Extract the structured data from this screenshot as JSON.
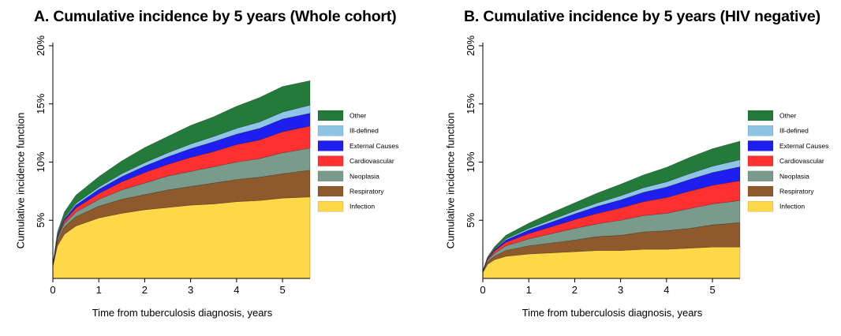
{
  "chart_data": [
    {
      "type": "area",
      "stacked": true,
      "title": "A. Cumulative incidence by 5 years (Whole cohort)",
      "xlabel": "Time from tuberculosis diagnosis, years",
      "ylabel": "Cumulative incidence function",
      "xlim": [
        0,
        5.6
      ],
      "ylim": [
        0,
        20
      ],
      "xticks": [
        "0",
        "1",
        "2",
        "3",
        "4",
        "5"
      ],
      "yticks": [
        "5%",
        "10%",
        "15%",
        "20%"
      ],
      "legend_position": "right",
      "x": [
        0,
        0.1,
        0.25,
        0.5,
        1,
        1.5,
        2,
        2.5,
        3,
        3.5,
        4,
        4.5,
        5,
        5.6
      ],
      "series": [
        {
          "name": "Infection",
          "color": "#FFD84A",
          "values": [
            1.0,
            2.8,
            3.8,
            4.5,
            5.2,
            5.6,
            5.9,
            6.1,
            6.3,
            6.4,
            6.6,
            6.7,
            6.9,
            7.0
          ]
        },
        {
          "name": "Respiratory",
          "color": "#8E5A2B",
          "values": [
            0.1,
            0.4,
            0.6,
            0.8,
            1.0,
            1.2,
            1.3,
            1.5,
            1.6,
            1.8,
            1.9,
            2.0,
            2.1,
            2.3
          ]
        },
        {
          "name": "Neoplasia",
          "color": "#7A9A8B",
          "values": [
            0.05,
            0.2,
            0.3,
            0.4,
            0.6,
            0.8,
            1.0,
            1.2,
            1.3,
            1.4,
            1.5,
            1.6,
            1.8,
            1.9
          ]
        },
        {
          "name": "Cardiovascular",
          "color": "#FF3030",
          "values": [
            0.05,
            0.15,
            0.25,
            0.35,
            0.5,
            0.7,
            0.9,
            1.0,
            1.2,
            1.3,
            1.5,
            1.6,
            1.8,
            1.9
          ]
        },
        {
          "name": "External Causes",
          "color": "#1E1EF0",
          "values": [
            0.02,
            0.1,
            0.15,
            0.25,
            0.35,
            0.45,
            0.55,
            0.65,
            0.75,
            0.85,
            0.9,
            1.0,
            1.1,
            1.1
          ]
        },
        {
          "name": "Ill-defined",
          "color": "#8EC4E6",
          "values": [
            0.01,
            0.05,
            0.1,
            0.15,
            0.2,
            0.25,
            0.3,
            0.35,
            0.4,
            0.45,
            0.5,
            0.55,
            0.6,
            0.7
          ]
        },
        {
          "name": "Other",
          "color": "#237A3A",
          "values": [
            0.05,
            0.3,
            0.5,
            0.7,
            0.9,
            1.1,
            1.3,
            1.4,
            1.6,
            1.7,
            1.9,
            2.1,
            2.2,
            2.1
          ]
        }
      ]
    },
    {
      "type": "area",
      "stacked": true,
      "title": "B. Cumulative incidence by 5 years (HIV negative)",
      "xlabel": "Time from tuberculosis diagnosis, years",
      "ylabel": "Cumulative incidence function",
      "xlim": [
        0,
        5.6
      ],
      "ylim": [
        0,
        20
      ],
      "xticks": [
        "0",
        "1",
        "2",
        "3",
        "4",
        "5"
      ],
      "yticks": [
        "5%",
        "10%",
        "15%",
        "20%"
      ],
      "legend_position": "right",
      "x": [
        0,
        0.1,
        0.25,
        0.5,
        1,
        1.5,
        2,
        2.5,
        3,
        3.5,
        4,
        4.5,
        5,
        5.6
      ],
      "series": [
        {
          "name": "Infection",
          "color": "#FFD84A",
          "values": [
            0.5,
            1.2,
            1.6,
            1.9,
            2.1,
            2.2,
            2.3,
            2.4,
            2.4,
            2.5,
            2.5,
            2.6,
            2.7,
            2.7
          ]
        },
        {
          "name": "Respiratory",
          "color": "#8E5A2B",
          "values": [
            0.05,
            0.2,
            0.3,
            0.5,
            0.7,
            0.85,
            1.0,
            1.2,
            1.3,
            1.5,
            1.6,
            1.7,
            1.9,
            2.1
          ]
        },
        {
          "name": "Neoplasia",
          "color": "#7A9A8B",
          "values": [
            0.05,
            0.15,
            0.25,
            0.4,
            0.6,
            0.8,
            1.0,
            1.1,
            1.3,
            1.4,
            1.5,
            1.7,
            1.8,
            1.9
          ]
        },
        {
          "name": "Cardiovascular",
          "color": "#FF3030",
          "values": [
            0.02,
            0.1,
            0.2,
            0.3,
            0.45,
            0.6,
            0.75,
            0.9,
            1.05,
            1.2,
            1.35,
            1.5,
            1.6,
            1.7
          ]
        },
        {
          "name": "External Causes",
          "color": "#1E1EF0",
          "values": [
            0.02,
            0.05,
            0.1,
            0.2,
            0.3,
            0.4,
            0.5,
            0.6,
            0.7,
            0.8,
            0.9,
            1.0,
            1.1,
            1.2
          ]
        },
        {
          "name": "Ill-defined",
          "color": "#8EC4E6",
          "values": [
            0.01,
            0.03,
            0.05,
            0.1,
            0.15,
            0.2,
            0.25,
            0.3,
            0.35,
            0.4,
            0.45,
            0.5,
            0.55,
            0.6
          ]
        },
        {
          "name": "Other",
          "color": "#237A3A",
          "values": [
            0.02,
            0.1,
            0.2,
            0.3,
            0.45,
            0.6,
            0.7,
            0.85,
            1.0,
            1.1,
            1.25,
            1.4,
            1.5,
            1.6
          ]
        }
      ]
    }
  ]
}
